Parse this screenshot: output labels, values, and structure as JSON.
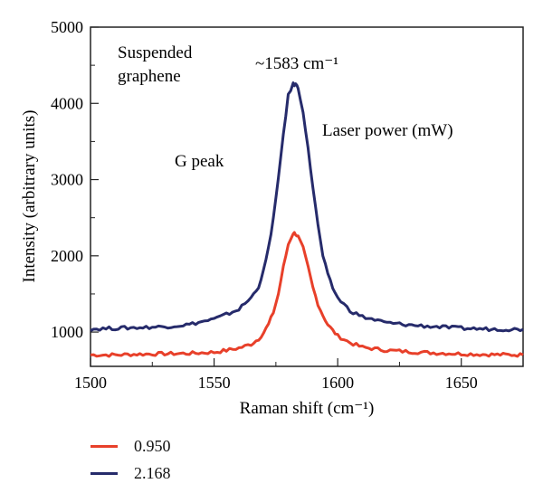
{
  "chart_data": {
    "type": "line",
    "xlabel": "Raman shift (cm⁻¹)",
    "ylabel": "Intensity (arbitrary units)",
    "xlim": [
      1500,
      1675
    ],
    "ylim": [
      550,
      5000
    ],
    "x_ticks": [
      1500,
      1550,
      1600,
      1650
    ],
    "y_ticks": [
      1000,
      2000,
      3000,
      4000,
      5000
    ],
    "grid": false,
    "legend_title": "Laser power (mW)",
    "legend_placement": "below",
    "annotations": {
      "sample": [
        "Suspended",
        "graphene"
      ],
      "peak_position": "~1583 cm⁻¹",
      "peak_name": "G peak"
    },
    "series": [
      {
        "name": "0.950",
        "color": "#e8402a",
        "x": [
          1500,
          1510,
          1520,
          1530,
          1540,
          1550,
          1555,
          1560,
          1565,
          1568,
          1570,
          1572,
          1574,
          1576,
          1578,
          1580,
          1582,
          1583,
          1584,
          1586,
          1588,
          1590,
          1592,
          1594,
          1596,
          1598,
          1600,
          1605,
          1610,
          1620,
          1630,
          1640,
          1650,
          1660,
          1675
        ],
        "y": [
          700,
          700,
          710,
          715,
          720,
          735,
          760,
          790,
          840,
          910,
          990,
          1100,
          1260,
          1500,
          1850,
          2150,
          2300,
          2290,
          2250,
          2100,
          1850,
          1580,
          1370,
          1220,
          1100,
          1020,
          950,
          860,
          800,
          760,
          740,
          725,
          715,
          705,
          700
        ]
      },
      {
        "name": "2.168",
        "color": "#262b6b",
        "x": [
          1500,
          1510,
          1520,
          1530,
          1540,
          1550,
          1555,
          1560,
          1565,
          1568,
          1570,
          1572,
          1574,
          1576,
          1578,
          1580,
          1582,
          1583,
          1584,
          1586,
          1588,
          1590,
          1592,
          1594,
          1596,
          1598,
          1600,
          1605,
          1610,
          1620,
          1630,
          1640,
          1650,
          1660,
          1675
        ],
        "y": [
          1040,
          1050,
          1060,
          1070,
          1100,
          1170,
          1230,
          1300,
          1450,
          1600,
          1800,
          2100,
          2500,
          3000,
          3600,
          4100,
          4250,
          4250,
          4200,
          3900,
          3400,
          2900,
          2400,
          2000,
          1750,
          1580,
          1450,
          1280,
          1200,
          1120,
          1090,
          1070,
          1050,
          1040,
          1035
        ]
      }
    ]
  }
}
